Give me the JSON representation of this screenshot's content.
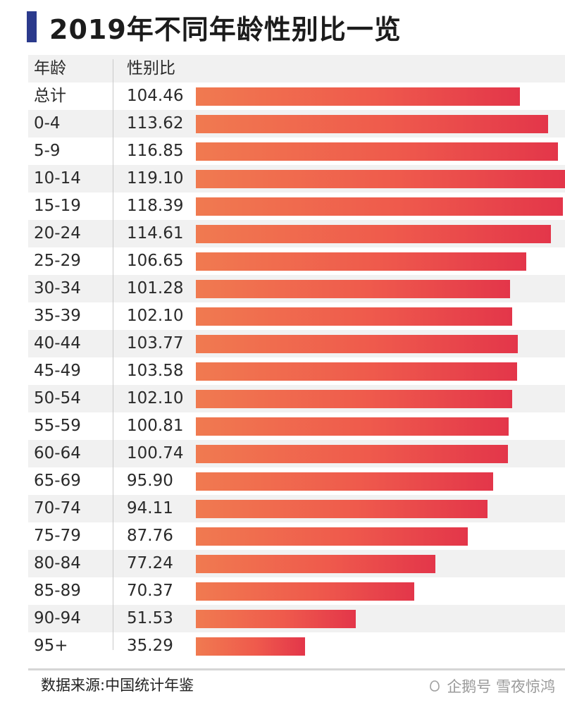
{
  "title": "2019年不同年龄性别比一览",
  "header": {
    "age_label": "年龄",
    "ratio_label": "性别比"
  },
  "source": "数据来源:中国统计年鉴",
  "watermark": "企鹅号 雪夜惊鸿",
  "colors": {
    "title_accent": "#2b3a8c",
    "bar_start": "#f07a50",
    "bar_end": "#e3364a",
    "row_shade": "#f1f1f1"
  },
  "chart_data": {
    "type": "bar",
    "orientation": "horizontal",
    "title": "2019年不同年龄性别比一览",
    "xlabel": "性别比",
    "ylabel": "年龄",
    "categories": [
      "总计",
      "0-4",
      "5-9",
      "10-14",
      "15-19",
      "20-24",
      "25-29",
      "30-34",
      "35-39",
      "40-44",
      "45-49",
      "50-54",
      "55-59",
      "60-64",
      "65-69",
      "70-74",
      "75-79",
      "80-84",
      "85-89",
      "90-94",
      "95+"
    ],
    "values": [
      104.46,
      113.62,
      116.85,
      119.1,
      118.39,
      114.61,
      106.65,
      101.28,
      102.1,
      103.77,
      103.58,
      102.1,
      100.81,
      100.74,
      95.9,
      94.11,
      87.76,
      77.24,
      70.37,
      51.53,
      35.29
    ],
    "value_labels": [
      "104.46",
      "113.62",
      "116.85",
      "119.10",
      "118.39",
      "114.61",
      "106.65",
      "101.28",
      "102.10",
      "103.77",
      "103.58",
      "102.10",
      "100.81",
      "100.74",
      "95.90",
      "94.11",
      "87.76",
      "77.24",
      "70.37",
      "51.53",
      "35.29"
    ],
    "grid": false
  }
}
